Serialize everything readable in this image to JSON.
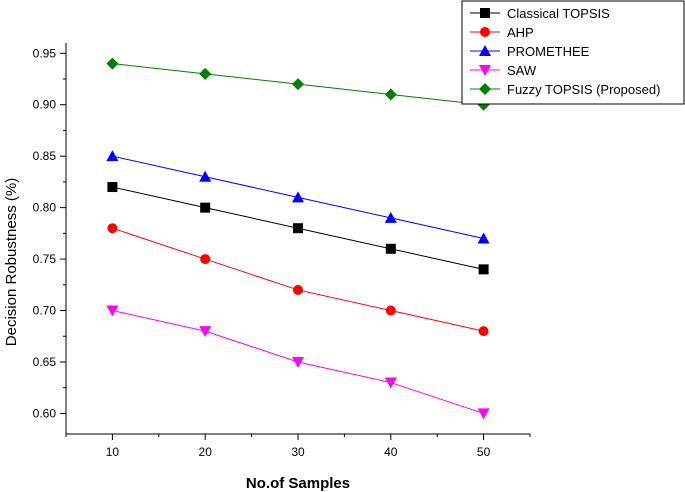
{
  "chart_data": {
    "type": "line",
    "xlabel": "No.of Samples",
    "ylabel": "Decision  Robustness  (%)",
    "x": [
      10,
      20,
      30,
      40,
      50
    ],
    "xlim": [
      5,
      55
    ],
    "ylim": [
      0.58,
      0.96
    ],
    "xticks": [
      "10",
      "20",
      "30",
      "40",
      "50"
    ],
    "yticks": [
      "0.60",
      "0.65",
      "0.70",
      "0.75",
      "0.80",
      "0.85",
      "0.90",
      "0.95"
    ],
    "grid": false,
    "legend_position": "top-right",
    "series": [
      {
        "name": "Classical TOPSIS",
        "color": "#000000",
        "marker": "square",
        "values": [
          0.82,
          0.8,
          0.78,
          0.76,
          0.74
        ]
      },
      {
        "name": "AHP",
        "color": "#ff0000",
        "marker": "circle",
        "values": [
          0.78,
          0.75,
          0.72,
          0.7,
          0.68
        ]
      },
      {
        "name": "PROMETHEE",
        "color": "#0000ff",
        "marker": "triangle-up",
        "values": [
          0.85,
          0.83,
          0.81,
          0.79,
          0.77
        ]
      },
      {
        "name": "SAW",
        "color": "#ff00ff",
        "marker": "triangle-down",
        "values": [
          0.7,
          0.68,
          0.65,
          0.63,
          0.6
        ]
      },
      {
        "name": "Fuzzy TOPSIS (Proposed)",
        "color": "#008000",
        "marker": "diamond",
        "values": [
          0.94,
          0.93,
          0.92,
          0.91,
          0.9
        ]
      }
    ]
  }
}
